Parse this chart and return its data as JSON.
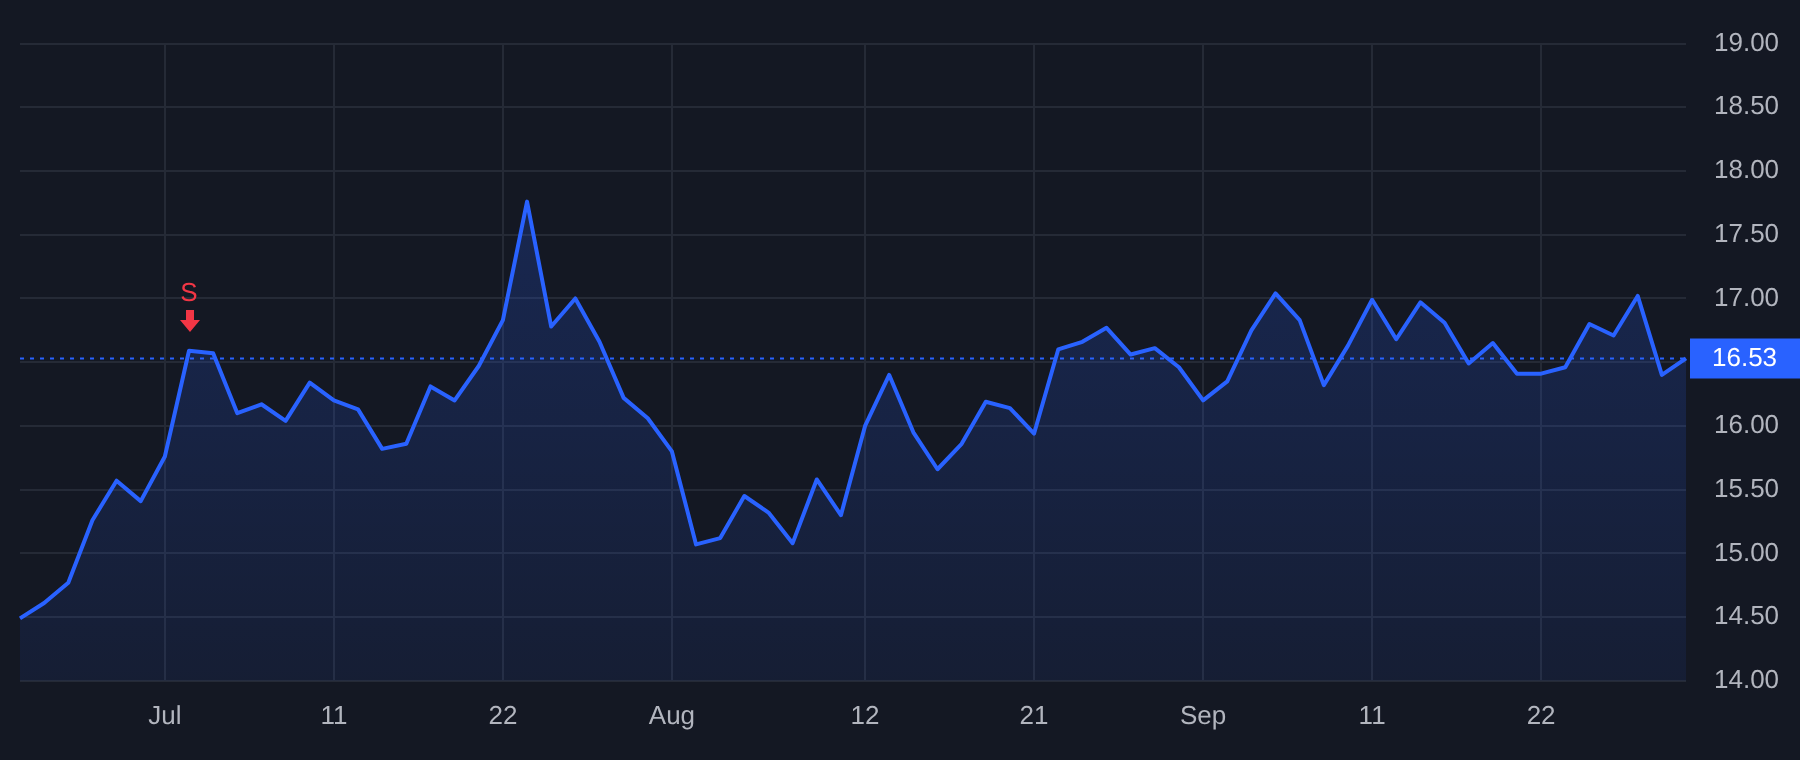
{
  "chart_data": {
    "type": "area",
    "categories": [
      null,
      null,
      null,
      null,
      null,
      null,
      "Jul",
      null,
      null,
      null,
      null,
      null,
      null,
      "11",
      null,
      null,
      null,
      null,
      null,
      null,
      "22",
      null,
      null,
      null,
      null,
      null,
      null,
      "Aug",
      null,
      null,
      null,
      null,
      null,
      null,
      null,
      "12",
      null,
      null,
      null,
      null,
      null,
      null,
      "21",
      null,
      null,
      null,
      null,
      null,
      null,
      "Sep",
      null,
      null,
      null,
      null,
      null,
      null,
      "11",
      null,
      null,
      null,
      null,
      null,
      null,
      "22",
      null,
      null,
      null,
      null,
      null,
      null
    ],
    "series": [
      {
        "color": "#2962ff",
        "values": [
          14.49,
          14.61,
          14.77,
          15.26,
          15.57,
          15.41,
          15.76,
          16.59,
          16.57,
          16.1,
          16.17,
          16.04,
          16.34,
          16.2,
          16.13,
          15.82,
          15.86,
          16.31,
          16.2,
          16.47,
          16.83,
          17.76,
          16.78,
          17.0,
          16.66,
          16.22,
          16.06,
          15.8,
          15.07,
          15.12,
          15.45,
          15.32,
          15.08,
          15.58,
          15.3,
          16.0,
          16.4,
          15.95,
          15.66,
          15.86,
          16.19,
          16.14,
          15.94,
          16.6,
          16.66,
          16.77,
          16.56,
          16.61,
          16.46,
          16.2,
          16.35,
          16.75,
          17.04,
          16.83,
          16.32,
          16.63,
          16.99,
          16.68,
          16.97,
          16.81,
          16.49,
          16.65,
          16.41,
          16.41,
          16.46,
          16.8,
          16.71,
          17.02,
          16.4,
          16.53
        ]
      }
    ],
    "ylim": [
      14,
      19
    ],
    "yticks": [
      {
        "value": 14,
        "label": "14.00"
      },
      {
        "value": 14.5,
        "label": "14.50"
      },
      {
        "value": 15,
        "label": "15.00"
      },
      {
        "value": 15.5,
        "label": "15.50"
      },
      {
        "value": 16,
        "label": "16.00"
      },
      {
        "value": 16.5,
        "label": null
      },
      {
        "value": 17,
        "label": "17.00"
      },
      {
        "value": 17.5,
        "label": "17.50"
      },
      {
        "value": 18,
        "label": "18.00"
      },
      {
        "value": 18.5,
        "label": "18.50"
      },
      {
        "value": 19,
        "label": "19.00"
      }
    ],
    "ref_lines": [
      {
        "axis": "y",
        "value": 16.53,
        "label": "16.53",
        "color": "#2962ff",
        "line_style": "dotted"
      }
    ],
    "annotations": [
      {
        "text": "S",
        "y": 16.59
      }
    ],
    "grid": true,
    "legend": false,
    "marker": "none",
    "line_style": "solid"
  }
}
